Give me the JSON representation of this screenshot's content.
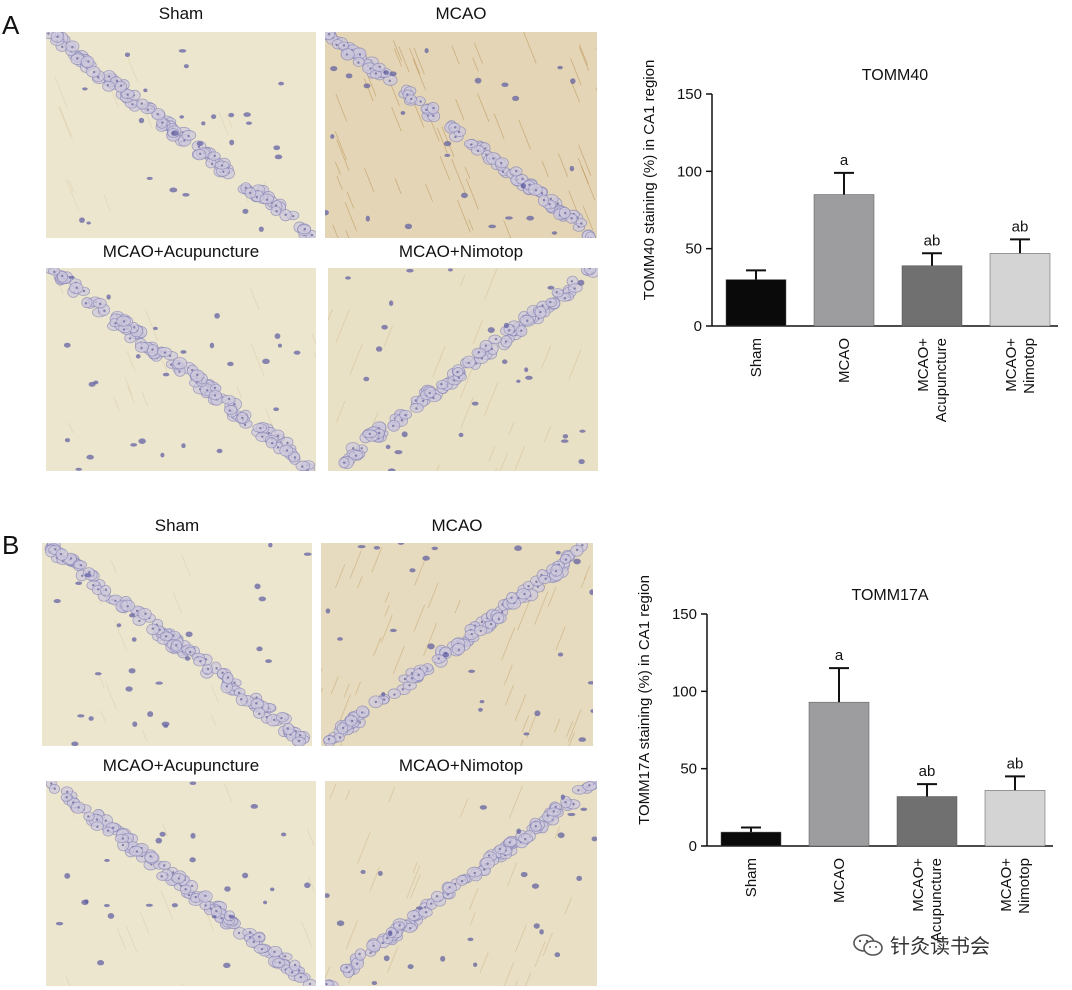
{
  "panels": [
    {
      "letter": "A",
      "image_labels": [
        "Sham",
        "MCAO",
        "MCAO+Acupuncture",
        "MCAO+Nimotop"
      ]
    },
    {
      "letter": "B",
      "image_labels": [
        "Sham",
        "MCAO",
        "MCAO+Acupuncture",
        "MCAO+Nimotop"
      ]
    }
  ],
  "watermark": "针灸读书会",
  "colors": {
    "sham": "#0a0a0a",
    "mcao": "#9d9da0",
    "acupuncture": "#707070",
    "nimotop": "#d4d4d4",
    "tissue": "#ece6cf",
    "nuclei": "#8b89b8",
    "stain": "#c9a66b"
  },
  "chart_data": [
    {
      "type": "bar",
      "title": "TOMM40",
      "ylabel": "TOMM40 staining (%) in CA1 region",
      "categories": [
        "Sham",
        "MCAO",
        "MCAO+\nAcupuncture",
        "MCAO+\nNimotop"
      ],
      "values": [
        30,
        85,
        39,
        47
      ],
      "errors": [
        6,
        14,
        8,
        9
      ],
      "annotations": [
        "",
        "a",
        "ab",
        "ab"
      ],
      "ylim": [
        0,
        150
      ],
      "yticks": [
        0,
        50,
        100,
        150
      ],
      "grid": false
    },
    {
      "type": "bar",
      "title": "TOMM17A",
      "ylabel": "TOMM17A staining (%) in CA1 region",
      "categories": [
        "Sham",
        "MCAO",
        "MCAO+\nAcupuncture",
        "MCAO+\nNimotop"
      ],
      "values": [
        9,
        93,
        32,
        36
      ],
      "errors": [
        3,
        22,
        8,
        9
      ],
      "annotations": [
        "",
        "a",
        "ab",
        "ab"
      ],
      "ylim": [
        0,
        150
      ],
      "yticks": [
        0,
        50,
        100,
        150
      ],
      "grid": false
    }
  ]
}
